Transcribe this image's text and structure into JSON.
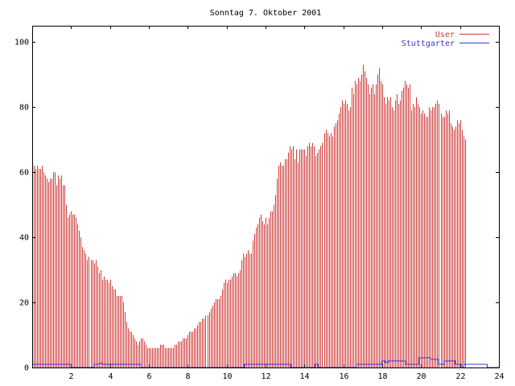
{
  "chart_data": {
    "type": "bar",
    "title": "Sonntag 7. Oktober 2001",
    "xlabel": "",
    "ylabel": "",
    "xlim": [
      0,
      24
    ],
    "ylim": [
      0,
      105
    ],
    "x_ticks": [
      2,
      4,
      6,
      8,
      10,
      12,
      14,
      16,
      18,
      20,
      22,
      24
    ],
    "y_ticks": [
      0,
      20,
      40,
      60,
      80,
      100
    ],
    "grid": false,
    "legend": "top-right",
    "interval_minutes": 5,
    "series": [
      {
        "name": "User",
        "style": "impulses",
        "color": "#d23c3c",
        "values": [
          64,
          62,
          61,
          62,
          61,
          61,
          62,
          60,
          59,
          58,
          57,
          58,
          58,
          60,
          60,
          56,
          59,
          58,
          59,
          56,
          56,
          50,
          46,
          47,
          48,
          47,
          47,
          46,
          44,
          42,
          40,
          37,
          36,
          35,
          33,
          34,
          33,
          33,
          32,
          33,
          31,
          29,
          30,
          27,
          28,
          27,
          27,
          26,
          27,
          25,
          24,
          24,
          22,
          22,
          22,
          22,
          20,
          17,
          14,
          12,
          11,
          11,
          10,
          9,
          8,
          7,
          8,
          9,
          9,
          8,
          7,
          6,
          6,
          6,
          6,
          6,
          6,
          6,
          6,
          7,
          7,
          7,
          6,
          6,
          6,
          6,
          6,
          6,
          7,
          7,
          8,
          8,
          8,
          9,
          9,
          9,
          10,
          11,
          11,
          11,
          12,
          12,
          13,
          14,
          14,
          15,
          15,
          16,
          16,
          17,
          18,
          19,
          20,
          21,
          21,
          21,
          22,
          24,
          26,
          27,
          26,
          27,
          27,
          28,
          29,
          29,
          28,
          29,
          30,
          33,
          35,
          34,
          35,
          36,
          35,
          35,
          39,
          41,
          43,
          44,
          46,
          47,
          45,
          44,
          46,
          44,
          46,
          48,
          48,
          50,
          53,
          58,
          62,
          63,
          62,
          62,
          64,
          64,
          66,
          68,
          67,
          68,
          64,
          67,
          63,
          67,
          67,
          67,
          67,
          65,
          68,
          69,
          68,
          69,
          68,
          65,
          66,
          67,
          68,
          69,
          72,
          73,
          72,
          71,
          72,
          71,
          74,
          75,
          76,
          78,
          80,
          82,
          81,
          82,
          81,
          79,
          80,
          86,
          84,
          88,
          87,
          89,
          88,
          90,
          93,
          91,
          89,
          87,
          84,
          86,
          87,
          84,
          87,
          90,
          92,
          88,
          87,
          83,
          81,
          83,
          82,
          83,
          80,
          79,
          82,
          84,
          81,
          82,
          85,
          86,
          88,
          87,
          86,
          87,
          79,
          81,
          80,
          83,
          81,
          80,
          78,
          79,
          78,
          77,
          77,
          80,
          79,
          80,
          80,
          81,
          82,
          81,
          78,
          77,
          77,
          79,
          78,
          79,
          75,
          74,
          73,
          74,
          76,
          75,
          76,
          73,
          71,
          70
        ]
      },
      {
        "name": "Stuttgarter",
        "style": "steps",
        "color": "#3838d8",
        "segments": [
          [
            0,
            1
          ],
          [
            2.0,
            0
          ],
          [
            3.2,
            1
          ],
          [
            3.45,
            1.3
          ],
          [
            3.6,
            1
          ],
          [
            5.6,
            0
          ],
          [
            10.9,
            1
          ],
          [
            13.3,
            0
          ],
          [
            14.55,
            1
          ],
          [
            14.7,
            0
          ],
          [
            16.7,
            1
          ],
          [
            18.0,
            2
          ],
          [
            18.15,
            1.5
          ],
          [
            18.3,
            2
          ],
          [
            19.2,
            1
          ],
          [
            19.9,
            3
          ],
          [
            20.5,
            2.5
          ],
          [
            20.9,
            1
          ],
          [
            21.2,
            2
          ],
          [
            21.75,
            1
          ],
          [
            22.1,
            0
          ],
          [
            22.2,
            1
          ],
          [
            23.4,
            0
          ],
          [
            24,
            0
          ]
        ]
      }
    ]
  }
}
